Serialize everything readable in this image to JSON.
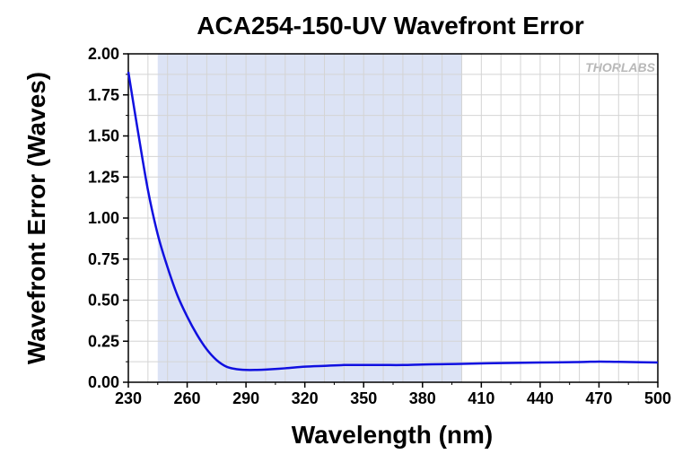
{
  "chart_data": {
    "type": "line",
    "title": "ACA254-150-UV Wavefront Error",
    "xlabel": "Wavelength (nm)",
    "ylabel": "Wavefront Error (Waves)",
    "xlim": [
      230,
      500
    ],
    "ylim": [
      0,
      2.0
    ],
    "x_ticks": [
      230,
      260,
      290,
      320,
      350,
      380,
      410,
      440,
      470,
      500
    ],
    "y_ticks": [
      "0.00",
      "0.25",
      "0.50",
      "0.75",
      "1.00",
      "1.25",
      "1.50",
      "1.75",
      "2.00"
    ],
    "grid": true,
    "highlight_band": {
      "x_start": 245,
      "x_end": 400,
      "color": "#dce3f5"
    },
    "series": [
      {
        "color": "#1010e0",
        "x": [
          230,
          235,
          240,
          245,
          250,
          255,
          260,
          265,
          270,
          275,
          280,
          285,
          290,
          295,
          300,
          310,
          320,
          330,
          340,
          350,
          360,
          370,
          380,
          390,
          400,
          420,
          440,
          460,
          470,
          480,
          500
        ],
        "y": [
          1.89,
          1.52,
          1.17,
          0.9,
          0.7,
          0.53,
          0.4,
          0.29,
          0.2,
          0.135,
          0.095,
          0.08,
          0.075,
          0.075,
          0.077,
          0.085,
          0.095,
          0.1,
          0.105,
          0.105,
          0.105,
          0.105,
          0.108,
          0.11,
          0.112,
          0.117,
          0.12,
          0.123,
          0.126,
          0.124,
          0.12
        ]
      }
    ]
  },
  "watermark": "THORLABS"
}
